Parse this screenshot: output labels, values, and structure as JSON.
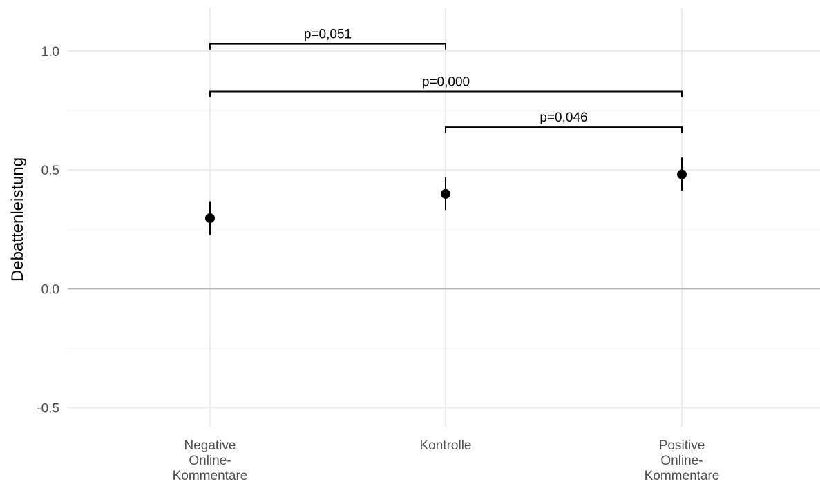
{
  "chart_data": {
    "type": "scatter",
    "title": "",
    "xlabel": "",
    "ylabel": "Debattenleistung",
    "ylim": [
      -0.58,
      1.18
    ],
    "y_ticks": [
      -0.5,
      0.0,
      0.5,
      1.0
    ],
    "y_tick_labels": [
      "-0.5",
      "0.0",
      "0.5",
      "1.0"
    ],
    "categories": [
      [
        "Negative",
        "Online-",
        "Kommentare"
      ],
      [
        "Kontrolle"
      ],
      [
        "Positive",
        "Online-",
        "Kommentare"
      ]
    ],
    "points": [
      {
        "category": 0,
        "y": 0.297,
        "lower": 0.226,
        "upper": 0.368
      },
      {
        "category": 1,
        "y": 0.399,
        "lower": 0.331,
        "upper": 0.468
      },
      {
        "category": 2,
        "y": 0.481,
        "lower": 0.413,
        "upper": 0.552
      }
    ],
    "reference_line": 0.0,
    "grid": true,
    "legend": "none",
    "significance_brackets": [
      {
        "from": 0,
        "to": 1,
        "y": 1.03,
        "label": "p=0,051"
      },
      {
        "from": 0,
        "to": 2,
        "y": 0.83,
        "label": "p=0,000"
      },
      {
        "from": 1,
        "to": 2,
        "y": 0.68,
        "label": "p=0,046"
      }
    ],
    "colors": {
      "point": "#000000",
      "grid_major": "#ebebeb",
      "grid_minor": "#f5f5f5",
      "zero_line": "#a6a6a6",
      "tick_text": "#4d4d4d"
    }
  }
}
